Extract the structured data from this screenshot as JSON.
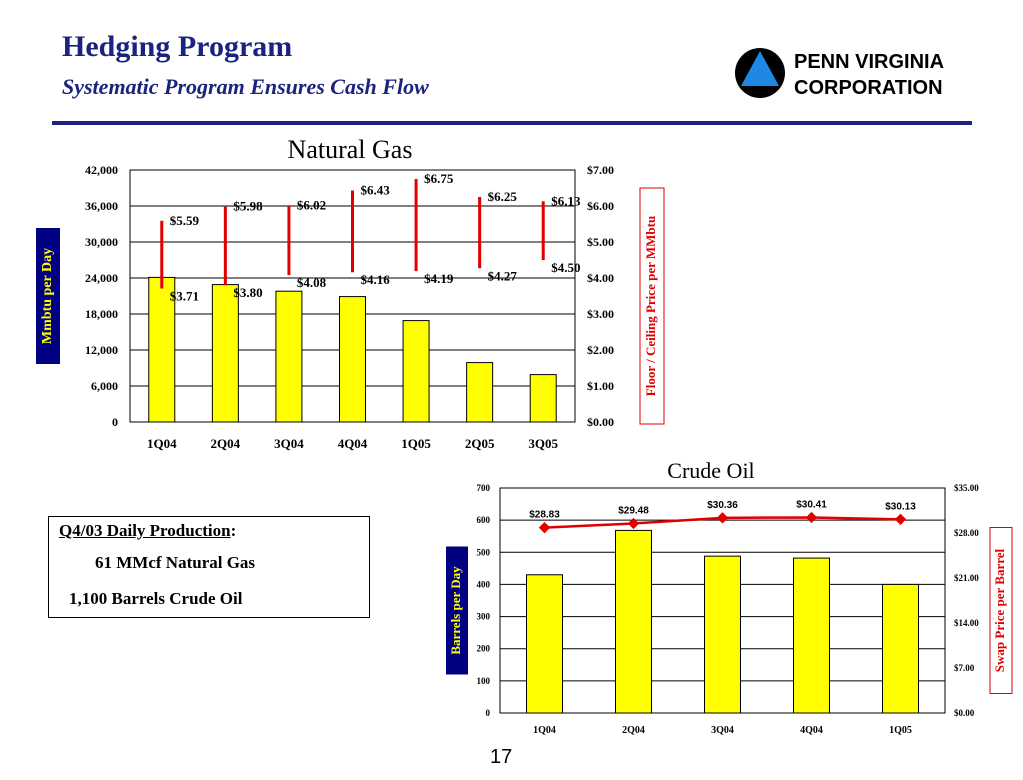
{
  "header": {
    "title": "Hedging Program",
    "subtitle": "Systematic Program Ensures Cash Flow",
    "logo_text_line1": "PENN VIRGINIA",
    "logo_text_line2": "CORPORATION"
  },
  "info_box": {
    "heading": "Q4/03 Daily Production",
    "heading_suffix": ":",
    "line1": "61 MMcf Natural Gas",
    "line2": "1,100 Barrels Crude Oil"
  },
  "footer": {
    "page_number": "17"
  },
  "colors": {
    "accent": "#1a237e",
    "bar": "#ffff00",
    "line": "#e00000",
    "ylabel_box": "#000080",
    "ylabel_text": "#ffff00"
  },
  "chart_data": [
    {
      "type": "bar",
      "title": "Natural Gas",
      "categories": [
        "1Q04",
        "2Q04",
        "3Q04",
        "4Q04",
        "1Q05",
        "2Q05",
        "3Q05"
      ],
      "ylabel": "Mmbtu per Day",
      "y2label": "Floor / Ceiling Price per MMbtu",
      "ylim": [
        0,
        42000
      ],
      "y2lim": [
        0,
        7
      ],
      "yticks": [
        "0",
        "6,000",
        "12,000",
        "18,000",
        "24,000",
        "30,000",
        "36,000",
        "42,000"
      ],
      "y2ticks": [
        "$0.00",
        "$1.00",
        "$2.00",
        "$3.00",
        "$4.00",
        "$5.00",
        "$6.00",
        "$7.00"
      ],
      "series": [
        {
          "name": "Volume",
          "values": [
            24100,
            22900,
            21800,
            20900,
            16900,
            9900,
            7900
          ]
        },
        {
          "name": "Floor",
          "values": [
            3.71,
            3.8,
            4.08,
            4.16,
            4.19,
            4.27,
            4.5
          ],
          "labels": [
            "$3.71",
            "$3.80",
            "$4.08",
            "$4.16",
            "$4.19",
            "$4.27",
            "$4.50"
          ]
        },
        {
          "name": "Ceiling",
          "values": [
            5.59,
            5.98,
            6.02,
            6.43,
            6.75,
            6.25,
            6.13
          ],
          "labels": [
            "$5.59",
            "$5.98",
            "$6.02",
            "$6.43",
            "$6.75",
            "$6.25",
            "$6.13"
          ]
        }
      ]
    },
    {
      "type": "bar",
      "title": "Crude Oil",
      "categories": [
        "1Q04",
        "2Q04",
        "3Q04",
        "4Q04",
        "1Q05"
      ],
      "ylabel": "Barrels per Day",
      "y2label": "Swap Price per Barrel",
      "ylim": [
        0,
        700
      ],
      "y2lim": [
        0,
        35
      ],
      "yticks": [
        "0",
        "100",
        "200",
        "300",
        "400",
        "500",
        "600",
        "700"
      ],
      "y2ticks": [
        "$0.00",
        "$7.00",
        "$14.00",
        "$21.00",
        "$28.00",
        "$35.00"
      ],
      "series": [
        {
          "name": "Volume",
          "values": [
            430,
            568,
            488,
            482,
            400
          ]
        },
        {
          "name": "Swap Price",
          "values": [
            28.83,
            29.48,
            30.36,
            30.41,
            30.13
          ],
          "labels": [
            "$28.83",
            "$29.48",
            "$30.36",
            "$30.41",
            "$30.13"
          ]
        }
      ]
    }
  ]
}
